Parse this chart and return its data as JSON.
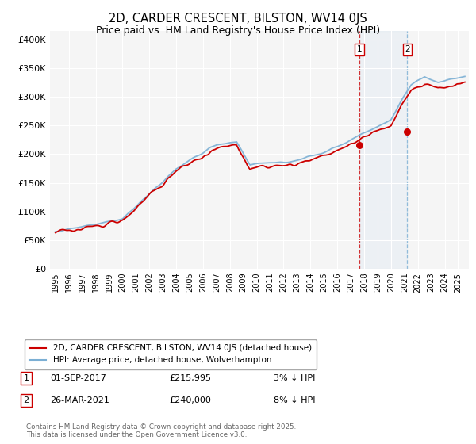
{
  "title": "2D, CARDER CRESCENT, BILSTON, WV14 0JS",
  "subtitle": "Price paid vs. HM Land Registry's House Price Index (HPI)",
  "ytick_values": [
    0,
    50000,
    100000,
    150000,
    200000,
    250000,
    300000,
    350000,
    400000
  ],
  "ylim": [
    0,
    415000
  ],
  "xlim_start": 1994.6,
  "xlim_end": 2025.8,
  "hpi_color": "#7bafd4",
  "price_color": "#cc0000",
  "marker1_date": 2017.67,
  "marker2_date": 2021.22,
  "marker1_price_val": 215995,
  "marker2_price_val": 240000,
  "marker1_label": "01-SEP-2017",
  "marker1_price": "£215,995",
  "marker1_hpi": "3% ↓ HPI",
  "marker2_label": "26-MAR-2021",
  "marker2_price": "£240,000",
  "marker2_hpi": "8% ↓ HPI",
  "legend_line1": "2D, CARDER CRESCENT, BILSTON, WV14 0JS (detached house)",
  "legend_line2": "HPI: Average price, detached house, Wolverhampton",
  "footnote": "Contains HM Land Registry data © Crown copyright and database right 2025.\nThis data is licensed under the Open Government Licence v3.0.",
  "background_color": "#ffffff",
  "plot_bg_color": "#f5f5f5",
  "grid_color": "#ffffff"
}
